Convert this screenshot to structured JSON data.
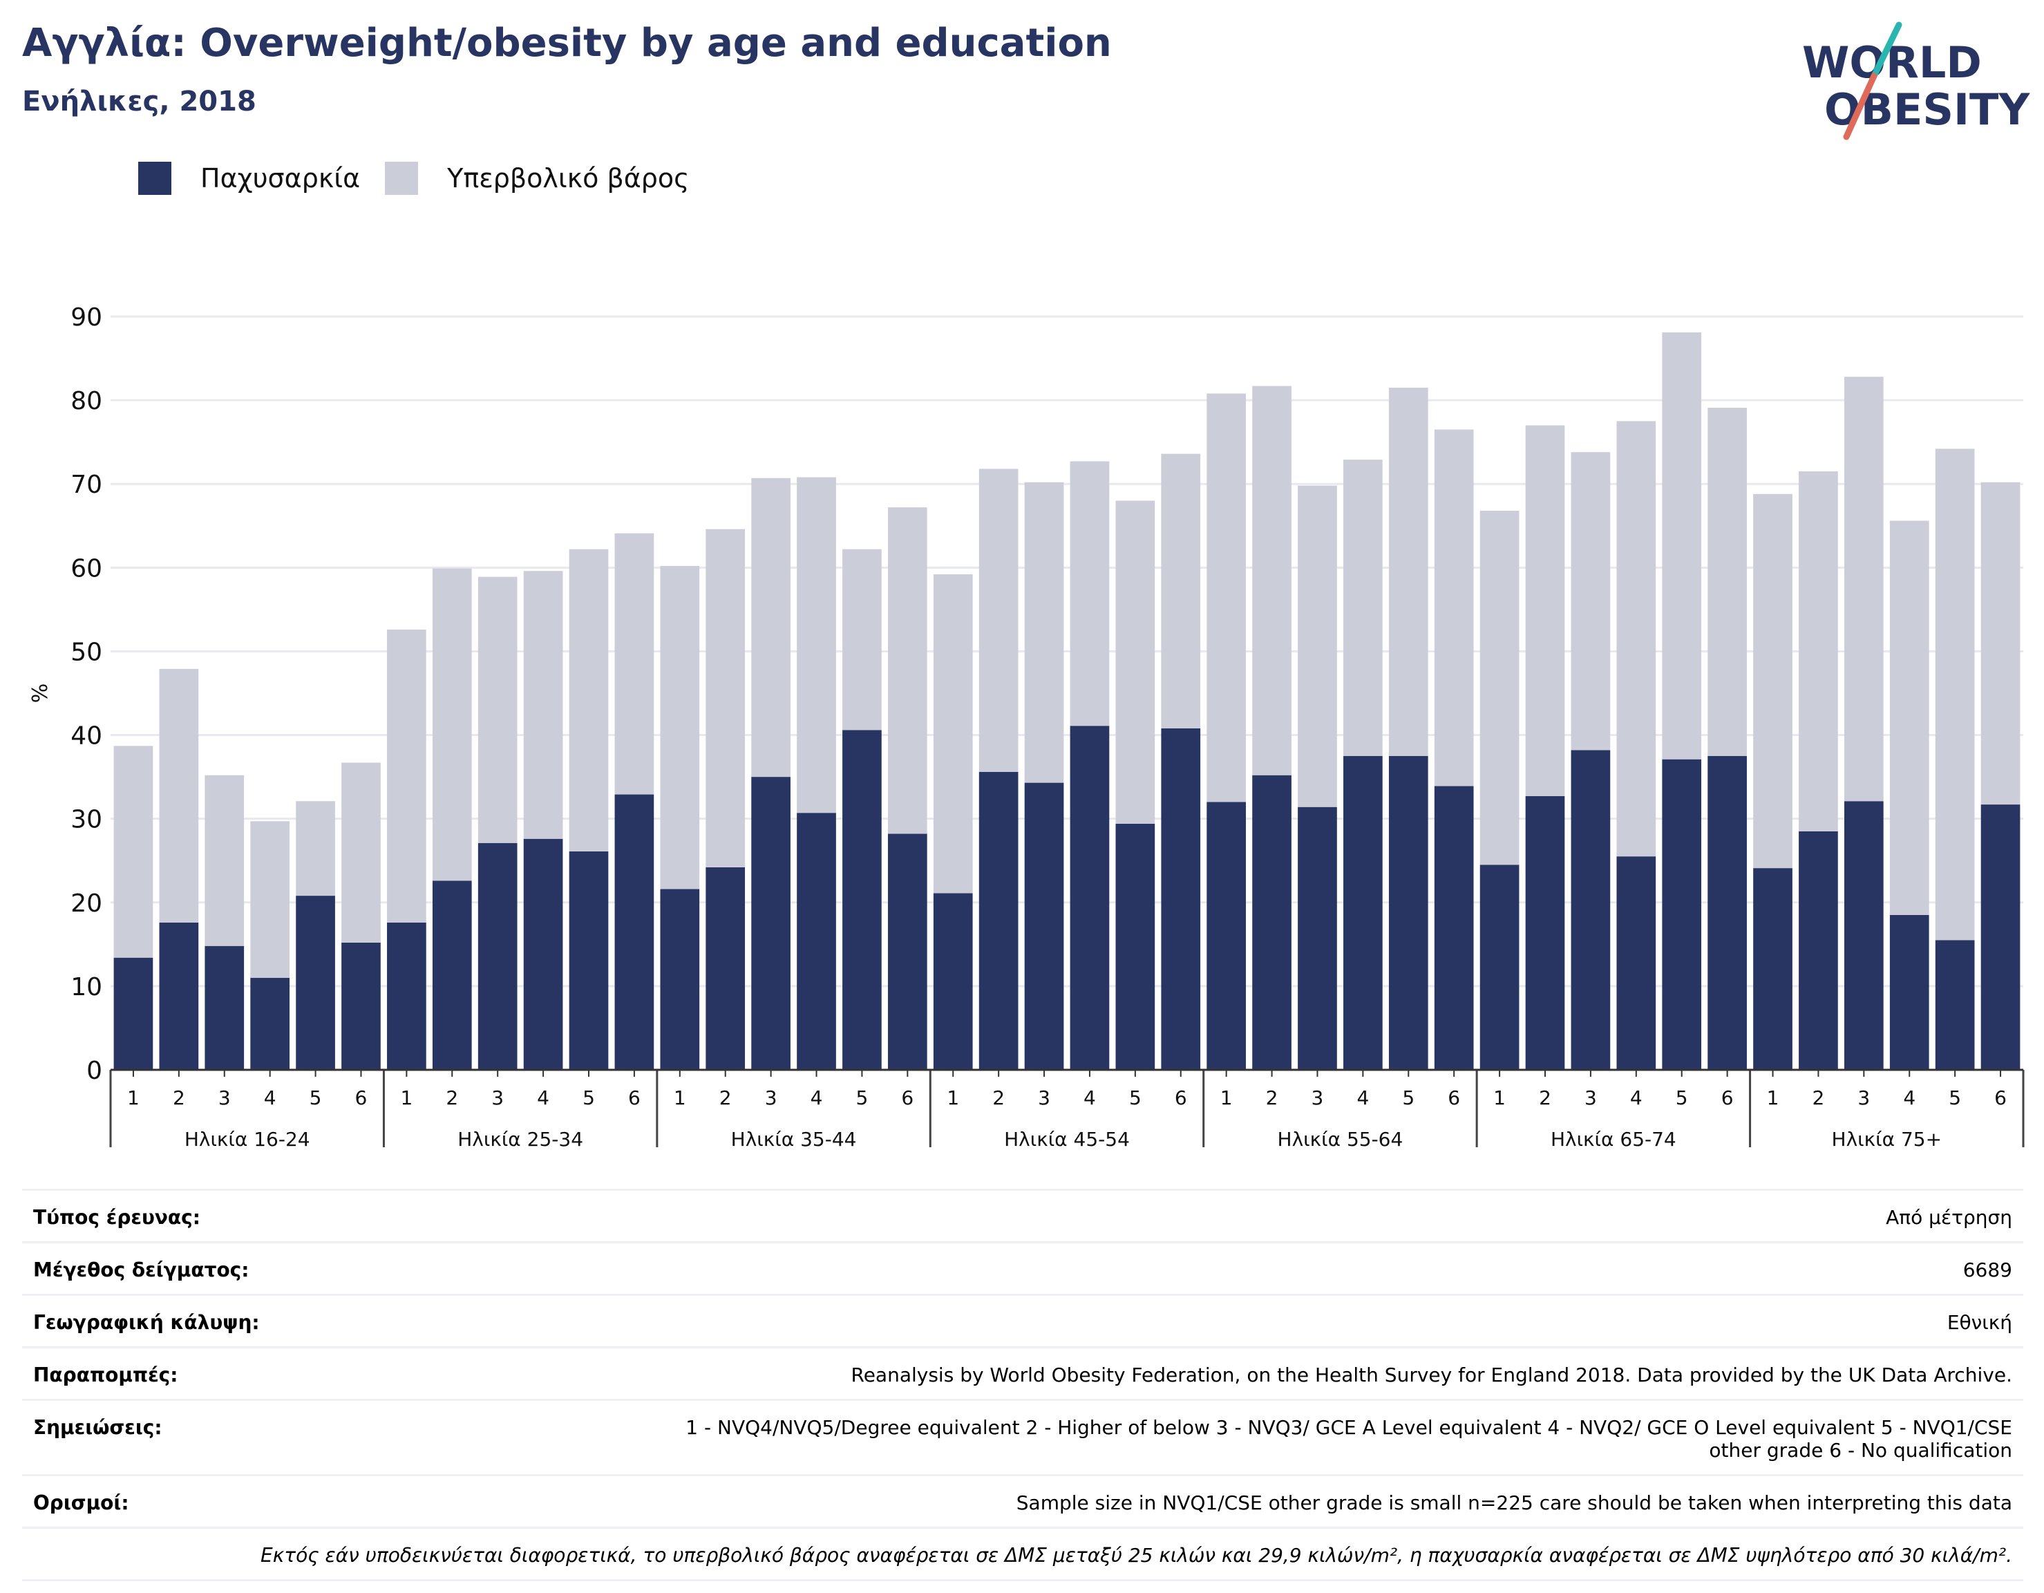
{
  "header": {
    "title": "Αγγλία: Overweight/obesity by age and education",
    "subtitle": "Ενήλικες, 2018"
  },
  "logo": {
    "line1": "WORLD",
    "line2": "OBESITY",
    "icon": "world-obesity-logo"
  },
  "colors": {
    "obesity": "#283562",
    "overweight": "#cbcdd8",
    "accent_red": "#e06a5a",
    "accent_teal": "#2bb5b0"
  },
  "chart_data": {
    "type": "bar",
    "stacked": true,
    "ylabel": "%",
    "ylim": [
      0,
      90
    ],
    "yticks": [
      0,
      10,
      20,
      30,
      40,
      50,
      60,
      70,
      80,
      90
    ],
    "grid": true,
    "legend_position": "top-left",
    "groups": [
      "Ηλικία 16-24",
      "Ηλικία 25-34",
      "Ηλικία 35-44",
      "Ηλικία 45-54",
      "Ηλικία 55-64",
      "Ηλικία 65-74",
      "Ηλικία 75+"
    ],
    "categories": [
      "1",
      "2",
      "3",
      "4",
      "5",
      "6"
    ],
    "series": [
      {
        "name": "Παχυσαρκία",
        "values": [
          [
            13.4,
            17.6,
            14.8,
            11.0,
            20.8,
            15.2
          ],
          [
            17.6,
            22.6,
            27.1,
            27.6,
            26.1,
            32.9
          ],
          [
            21.6,
            24.2,
            35.0,
            30.7,
            40.6,
            28.2
          ],
          [
            21.1,
            35.6,
            34.3,
            41.1,
            29.4,
            40.8
          ],
          [
            32.0,
            35.2,
            31.4,
            37.5,
            37.5,
            33.9
          ],
          [
            24.5,
            32.7,
            38.2,
            25.5,
            37.1,
            37.5
          ],
          [
            24.1,
            28.5,
            32.1,
            18.5,
            15.5,
            31.7
          ]
        ]
      },
      {
        "name": "Υπερβολικό βάρος",
        "values": [
          [
            25.3,
            30.3,
            20.4,
            18.7,
            11.3,
            21.5
          ],
          [
            35.0,
            37.3,
            31.8,
            32.0,
            36.1,
            31.2
          ],
          [
            38.6,
            40.4,
            35.7,
            40.1,
            21.6,
            39.0
          ],
          [
            38.1,
            36.2,
            35.9,
            31.6,
            38.6,
            32.8
          ],
          [
            48.8,
            46.5,
            38.4,
            35.4,
            44.0,
            42.6
          ],
          [
            42.3,
            44.3,
            35.6,
            52.0,
            51.0,
            41.6
          ],
          [
            44.7,
            43.0,
            50.7,
            47.1,
            58.7,
            38.5
          ]
        ]
      }
    ]
  },
  "info": {
    "rows": [
      {
        "key": "Τύπος έρευνας:",
        "value": "Από μέτρηση"
      },
      {
        "key": "Μέγεθος δείγματος:",
        "value": "6689"
      },
      {
        "key": "Γεωγραφική κάλυψη:",
        "value": "Εθνική"
      },
      {
        "key": "Παραπομπές:",
        "value": "Reanalysis by World Obesity Federation, on the Health Survey for England 2018. Data provided by the UK Data Archive."
      },
      {
        "key": "Σημειώσεις:",
        "value": "1 - NVQ4/NVQ5/Degree equivalent 2 - Higher of below 3 - NVQ3/ GCE A Level equivalent 4 - NVQ2/ GCE O Level equivalent 5 - NVQ1/CSE other grade 6 - No qualification"
      },
      {
        "key": "Ορισμοί:",
        "value": "Sample size in NVQ1/CSE other grade is small n=225 care should be taken when interpreting this data"
      }
    ],
    "footnote": "Εκτός εάν υποδεικνύεται διαφορετικά, το υπερβολικό βάρος αναφέρεται σε ΔΜΣ μεταξύ 25 κιλών και 29,9 κιλών/m², η παχυσαρκία αναφέρεται σε ΔΜΣ υψηλότερο από 30 κιλά/m²."
  }
}
